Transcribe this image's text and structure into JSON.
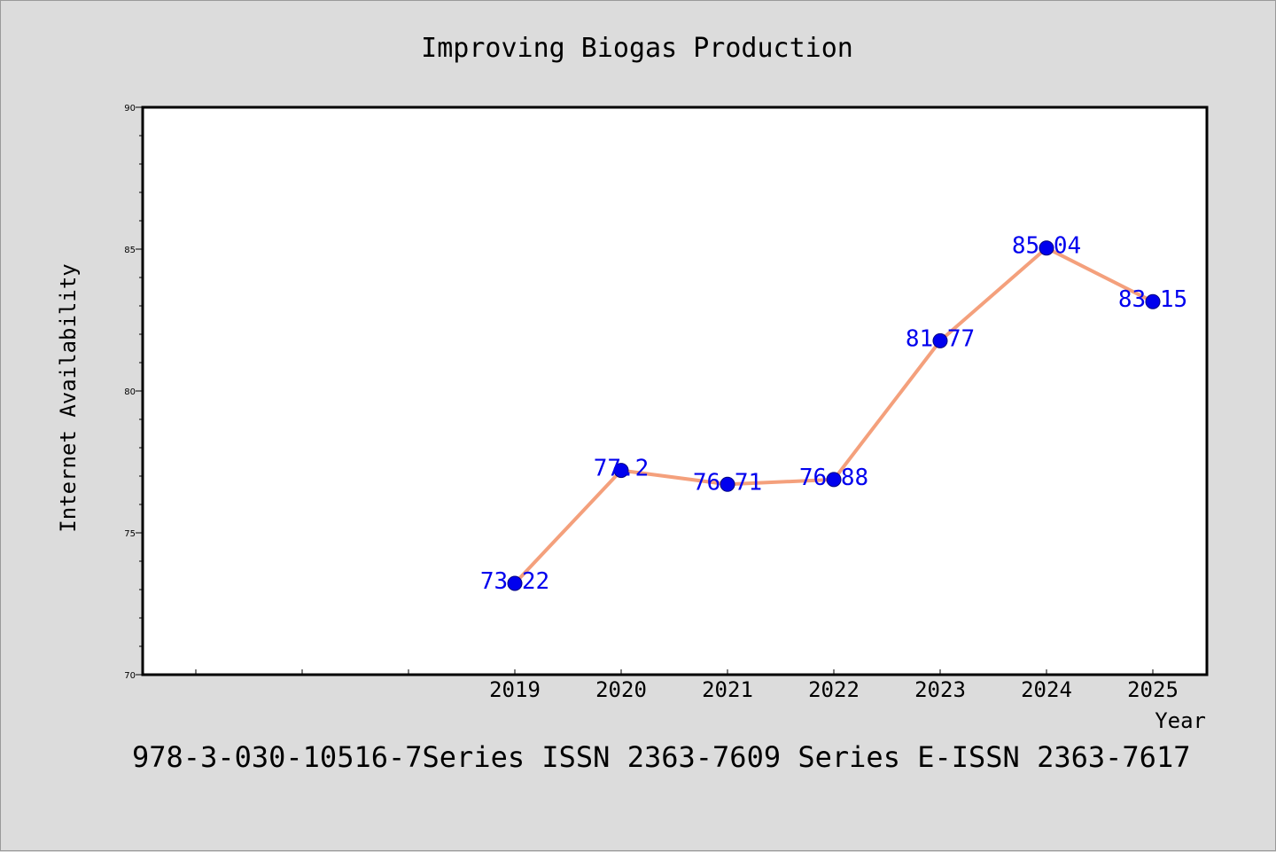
{
  "chart_data": {
    "type": "line",
    "title": "Improving Biogas Production",
    "xlabel": "Year",
    "ylabel": "Internet Availability",
    "categories": [
      "2019",
      "2020",
      "2021",
      "2022",
      "2023",
      "2024",
      "2025"
    ],
    "series": [
      {
        "values": [
          73.22,
          77.2,
          76.71,
          76.88,
          81.77,
          85.04,
          83.15
        ],
        "labels": [
          "73.22",
          "77.2",
          "76.71",
          "76.88",
          "81.77",
          "85.04",
          "83.15"
        ]
      }
    ],
    "ylim": [
      70,
      90
    ],
    "yticks": [
      "70",
      "75",
      "80",
      "85",
      "90"
    ],
    "grid": false,
    "line_color": "#f4a07c",
    "marker_color": "#0000ee",
    "label_color": "#0000ee",
    "footer": "978-3-030-10516-7Series ISSN 2363-7609 Series E-ISSN 2363-7617"
  }
}
